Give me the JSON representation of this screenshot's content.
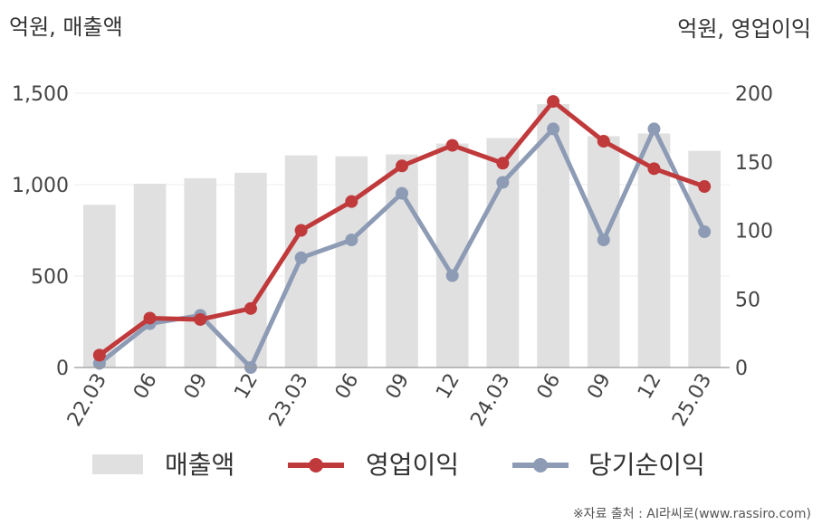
{
  "chart_data": {
    "type": "bar",
    "categories": [
      "22.03",
      "06",
      "09",
      "12",
      "23.03",
      "06",
      "09",
      "12",
      "24.03",
      "06",
      "09",
      "12",
      "25.03"
    ],
    "left_unit_label": "억원, 매출액",
    "right_unit_label": "억원, 영업이익",
    "ylim_left": [
      0,
      1500
    ],
    "ylim_right": [
      0,
      200
    ],
    "yticks_left": [
      "0",
      "500",
      "1,000",
      "1,500"
    ],
    "yticks_right": [
      "0",
      "50",
      "100",
      "150",
      "200"
    ],
    "grid": true,
    "series": [
      {
        "name": "매출액",
        "type": "bar",
        "axis": "left",
        "color": "#e0e0e0",
        "values": [
          890,
          1005,
          1035,
          1065,
          1160,
          1155,
          1165,
          1225,
          1255,
          1440,
          1265,
          1280,
          1185
        ]
      },
      {
        "name": "영업이익",
        "type": "line",
        "axis": "right",
        "color": "#c0393b",
        "values": [
          9,
          36,
          35,
          43,
          100,
          121,
          147,
          162,
          149,
          194,
          165,
          145,
          132
        ]
      },
      {
        "name": "당기순이익",
        "type": "line",
        "axis": "right",
        "color": "#8d9bb5",
        "values": [
          3,
          32,
          38,
          0,
          80,
          93,
          127,
          67,
          135,
          174,
          93,
          174,
          99
        ]
      }
    ],
    "legend_position": "bottom"
  },
  "source_text": "※자료 출처 : AI라씨로(www.rassiro.com)"
}
